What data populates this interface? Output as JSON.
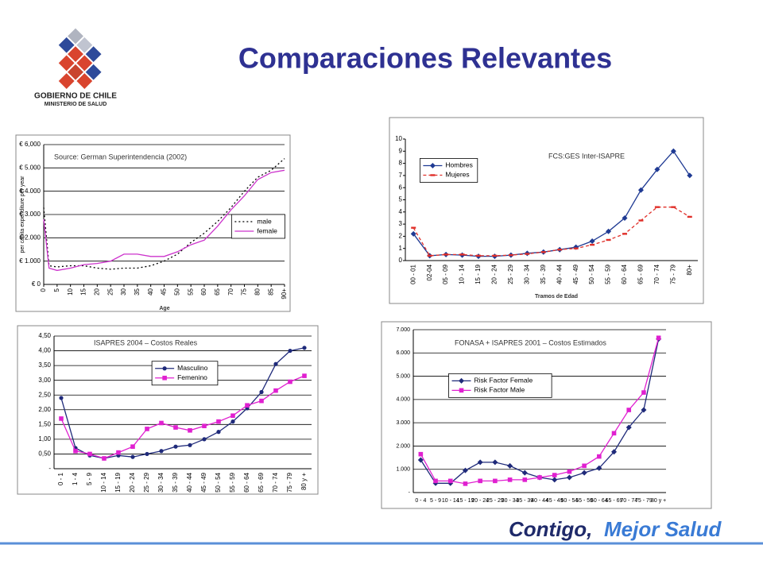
{
  "header": {
    "title": "Comparaciones Relevantes",
    "logo_line1": "GOBIERNO DE CHILE",
    "logo_line2": "MINISTERIO DE SALUD"
  },
  "footer": {
    "slogan_part1": "Contigo,",
    "slogan_part2": "Mejor Salud"
  },
  "chart_data": [
    {
      "type": "line",
      "annotation": "Source: German Superintendencia (2002)",
      "y_label": "per capita expenditure per year",
      "x_label": "Age",
      "x": [
        0,
        2,
        5,
        10,
        15,
        20,
        25,
        30,
        35,
        40,
        45,
        50,
        55,
        60,
        65,
        70,
        75,
        80,
        85,
        90
      ],
      "xlim": [
        0,
        90
      ],
      "xticks": [
        0,
        5,
        10,
        15,
        20,
        25,
        30,
        35,
        40,
        45,
        50,
        55,
        60,
        65,
        70,
        75,
        80,
        85,
        {
          "value": 90,
          "label": "90+"
        }
      ],
      "ylim": [
        0,
        6000
      ],
      "yticks": [
        {
          "value": 0,
          "label": "€ 0"
        },
        {
          "value": 1000,
          "label": "€ 1.000"
        },
        {
          "value": 2000,
          "label": "€ 2.000"
        },
        {
          "value": 3000,
          "label": "€ 3.000"
        },
        {
          "value": 4000,
          "label": "€ 4.000"
        },
        {
          "value": 5000,
          "label": "€ 5.000"
        },
        {
          "value": 6000,
          "label": "€ 6,000"
        }
      ],
      "grid": true,
      "legend": "center-right",
      "series": [
        {
          "name": "male",
          "color": "#000000",
          "dash": "dotted",
          "marker": "none",
          "values": [
            3300,
            800,
            750,
            800,
            800,
            700,
            650,
            700,
            700,
            800,
            1000,
            1300,
            1800,
            2200,
            2700,
            3300,
            4000,
            4600,
            4900,
            5400
          ]
        },
        {
          "name": "female",
          "color": "#cc33cc",
          "dash": "solid",
          "marker": "none",
          "values": [
            2800,
            700,
            600,
            700,
            850,
            900,
            1000,
            1300,
            1300,
            1200,
            1200,
            1400,
            1700,
            1900,
            2500,
            3200,
            3800,
            4500,
            4800,
            4900
          ]
        }
      ]
    },
    {
      "type": "line",
      "title": "FCS:GES Inter-ISAPRE",
      "x_label": "Tramos de Edad",
      "categories": [
        "00 - 01",
        "02-04",
        "05 - 09",
        "10 - 14",
        "15 - 19",
        "20 - 24",
        "25 - 29",
        "30 - 34",
        "35 - 39",
        "40 - 44",
        "45 - 49",
        "50 - 54",
        "55 - 59",
        "60 - 64",
        "65 - 69",
        "70 - 74",
        "75 - 79",
        "80+"
      ],
      "ylim": [
        0,
        10
      ],
      "yticks": [
        0,
        1,
        2,
        3,
        4,
        5,
        6,
        7,
        8,
        9,
        10
      ],
      "grid": false,
      "legend": "upper-left",
      "series": [
        {
          "name": "Hombres",
          "color": "#1f3a93",
          "dash": "solid",
          "marker": "diamond",
          "values": [
            2.2,
            0.4,
            0.5,
            0.45,
            0.35,
            0.35,
            0.45,
            0.6,
            0.7,
            0.9,
            1.1,
            1.6,
            2.4,
            3.5,
            5.8,
            7.5,
            9.0,
            7.0
          ]
        },
        {
          "name": "Mujeres",
          "color": "#e0302a",
          "dash": "dashed",
          "marker": "dash",
          "values": [
            2.7,
            0.4,
            0.5,
            0.5,
            0.4,
            0.4,
            0.45,
            0.55,
            0.7,
            0.9,
            1.0,
            1.3,
            1.7,
            2.2,
            3.3,
            4.4,
            4.4,
            3.6
          ]
        }
      ]
    },
    {
      "type": "line",
      "title": "ISAPRES 2004 – Costos Reales",
      "categories": [
        "0 - 1",
        "1 - 4",
        "5 - 9",
        "10 - 14",
        "15 - 19",
        "20 - 24",
        "25 - 29",
        "30 - 34",
        "35 - 39",
        "40 - 44",
        "45 - 49",
        "50 - 54",
        "55 - 59",
        "60 - 64",
        "65 - 69",
        "70 - 74",
        "75 - 79",
        "80 y +"
      ],
      "ylim": [
        0,
        4.5
      ],
      "yticks": [
        {
          "value": 0,
          "label": "-"
        },
        {
          "value": 0.5,
          "label": "0,50"
        },
        {
          "value": 1,
          "label": "1,00"
        },
        {
          "value": 1.5,
          "label": "1,50"
        },
        {
          "value": 2,
          "label": "2,00"
        },
        {
          "value": 2.5,
          "label": "2,50"
        },
        {
          "value": 3,
          "label": "3,00"
        },
        {
          "value": 3.5,
          "label": "3,50"
        },
        {
          "value": 4,
          "label": "4,00"
        },
        {
          "value": 4.5,
          "label": "4,50"
        }
      ],
      "grid": true,
      "legend": "upper-center",
      "series": [
        {
          "name": "Masculino",
          "color": "#1f2a7a",
          "dash": "solid",
          "marker": "circle",
          "values": [
            2.4,
            0.7,
            0.45,
            0.35,
            0.45,
            0.4,
            0.5,
            0.6,
            0.75,
            0.8,
            1.0,
            1.25,
            1.6,
            2.05,
            2.6,
            3.55,
            4.0,
            4.1
          ]
        },
        {
          "name": "Femenino",
          "color": "#e020d0",
          "dash": "solid",
          "marker": "square",
          "values": [
            1.7,
            0.6,
            0.5,
            0.35,
            0.55,
            0.75,
            1.35,
            1.55,
            1.4,
            1.3,
            1.45,
            1.6,
            1.8,
            2.15,
            2.3,
            2.65,
            2.95,
            3.15
          ]
        }
      ]
    },
    {
      "type": "line",
      "title": "FONASA + ISAPRES 2001 – Costos Estimados",
      "categories": [
        "0 - 4",
        "5 - 9",
        "10 - 14",
        "15 - 19",
        "20 - 24",
        "25 - 29",
        "30 - 34",
        "35 - 39",
        "40 - 44",
        "45 - 49",
        "50 - 54",
        "55 - 59",
        "60 - 64",
        "65 - 69",
        "70 - 74",
        "75 - 79",
        "80 y +"
      ],
      "ylim": [
        0,
        7000
      ],
      "yticks": [
        {
          "value": 0,
          "label": "-"
        },
        {
          "value": 1000,
          "label": "1.000"
        },
        {
          "value": 2000,
          "label": "2.000"
        },
        {
          "value": 3000,
          "label": "3.000"
        },
        {
          "value": 4000,
          "label": "4.000"
        },
        {
          "value": 5000,
          "label": "5.000"
        },
        {
          "value": 6000,
          "label": "6.000"
        },
        {
          "value": 7000,
          "label": "7.000"
        }
      ],
      "grid": true,
      "legend": "left",
      "series": [
        {
          "name": "Risk Factor Female",
          "color": "#1f2a7a",
          "dash": "solid",
          "marker": "diamond",
          "values": [
            1400,
            400,
            400,
            950,
            1300,
            1300,
            1150,
            850,
            650,
            550,
            650,
            850,
            1050,
            1750,
            2800,
            3550,
            6600
          ]
        },
        {
          "name": "Risk Factor Male",
          "color": "#e020d0",
          "dash": "solid",
          "marker": "square",
          "values": [
            1650,
            500,
            500,
            380,
            500,
            500,
            550,
            550,
            650,
            750,
            900,
            1150,
            1550,
            2550,
            3550,
            4300,
            6650
          ]
        }
      ]
    }
  ]
}
